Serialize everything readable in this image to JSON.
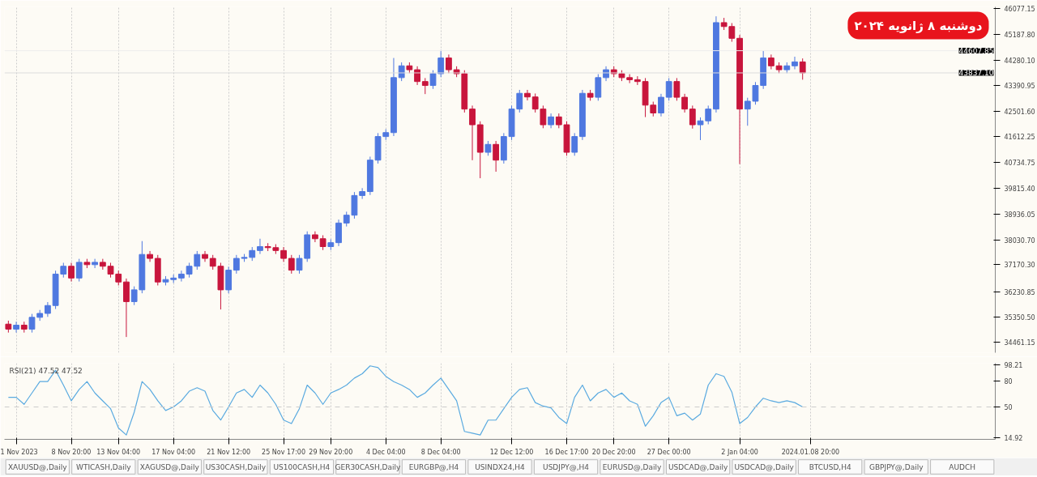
{
  "chart_data": [
    {
      "type": "candlestick",
      "title": "دوشنبه ۸ ژانویه ۲۰۲۴",
      "ylim": [
        34107,
        46132
      ],
      "yticks": [
        46077.15,
        {
          "value": 45187.8,
          "label": "45187.80"
        },
        {
          "value": 44280.1,
          "label": "44280.10"
        },
        43390.95,
        {
          "value": 42501.6,
          "label": "42501.60"
        },
        41612.25,
        40734.75,
        {
          "value": 39815.4,
          "label": "39815.40"
        },
        38936.05,
        {
          "value": 38030.7,
          "label": "38030.70"
        },
        {
          "value": 37170.3,
          "label": "37170.30"
        },
        36230.85,
        {
          "value": 35350.5,
          "label": "35350.50"
        },
        34461.15
      ],
      "categories": [
        null,
        null,
        null,
        null,
        null,
        null,
        null,
        null,
        null,
        null,
        null,
        null,
        null,
        null,
        null,
        null,
        null,
        null,
        null,
        null,
        null,
        null,
        null,
        null,
        null,
        null,
        null,
        null,
        null,
        null,
        null,
        null,
        null,
        null,
        null,
        null,
        null,
        null,
        null,
        null,
        null,
        null,
        null,
        null,
        null,
        null,
        null,
        null,
        null,
        null,
        null,
        null,
        null,
        null,
        null,
        null,
        null,
        null,
        null,
        null,
        null,
        null,
        null,
        null,
        null,
        null,
        null,
        null,
        null,
        null,
        null,
        null,
        null,
        null,
        null,
        null,
        null,
        null,
        null,
        null,
        null,
        null,
        null,
        null,
        null,
        null,
        null,
        null,
        null,
        null,
        null,
        null,
        null,
        null,
        null,
        null,
        null,
        null,
        null,
        null,
        null,
        null,
        null,
        null,
        null,
        null,
        null,
        null,
        null,
        null,
        null,
        null,
        null,
        null,
        null,
        null,
        null,
        null,
        null,
        null,
        null,
        null,
        null,
        null,
        null,
        null
      ],
      "tick_labels": "y",
      "grid": "x",
      "ref_lines": [
        {
          "axis": "y",
          "value": 43837.1,
          "label": "43837.10",
          "color": "#dddddd"
        },
        {
          "axis": "y",
          "value": 44607.85,
          "label": "44607.85",
          "color": "#eeeeee"
        }
      ],
      "ohlc": [
        [
          35100,
          35220,
          34807,
          34927
        ],
        [
          34927,
          35184,
          34807,
          35064
        ],
        [
          35064,
          35184,
          34807,
          34927
        ],
        [
          34927,
          35456,
          34807,
          35336
        ],
        [
          35336,
          35593,
          35216,
          35473
        ],
        [
          35473,
          35867,
          35353,
          35747
        ],
        [
          35747,
          36960,
          35627,
          36840
        ],
        [
          36840,
          37233,
          36720,
          37113
        ],
        [
          37113,
          37233,
          36583,
          36703
        ],
        [
          36703,
          37370,
          36583,
          37250
        ],
        [
          37250,
          37370,
          37048,
          37168
        ],
        [
          37168,
          37370,
          37048,
          37250
        ],
        [
          37250,
          37370,
          36993,
          37113
        ],
        [
          37113,
          37233,
          36720,
          36840
        ],
        [
          36840,
          36960,
          36446,
          36566
        ],
        [
          36566,
          36686,
          34653,
          35883
        ],
        [
          35883,
          36413,
          35763,
          36293
        ],
        [
          36293,
          37988,
          36173,
          37523
        ],
        [
          37523,
          37643,
          37266,
          37386
        ],
        [
          37386,
          37506,
          36446,
          36566
        ],
        [
          36566,
          36770,
          36446,
          36650
        ],
        [
          36650,
          36823,
          36530,
          36703
        ],
        [
          36703,
          36960,
          36583,
          36840
        ],
        [
          36840,
          37233,
          36720,
          37113
        ],
        [
          37113,
          37643,
          36993,
          37523
        ],
        [
          37523,
          37643,
          37266,
          37386
        ],
        [
          37386,
          37506,
          36993,
          37113
        ],
        [
          37113,
          37233,
          35610,
          36293
        ],
        [
          36293,
          37096,
          36173,
          36976
        ],
        [
          36976,
          37506,
          36856,
          37386
        ],
        [
          37386,
          37540,
          37266,
          37420
        ],
        [
          37420,
          37780,
          37300,
          37660
        ],
        [
          37660,
          38070,
          37540,
          37796
        ],
        [
          37796,
          37916,
          37640,
          37760
        ],
        [
          37760,
          37880,
          37540,
          37660
        ],
        [
          37660,
          37780,
          37266,
          37386
        ],
        [
          37386,
          37506,
          36856,
          36976
        ],
        [
          36976,
          37506,
          36856,
          37386
        ],
        [
          37386,
          38326,
          37266,
          38206
        ],
        [
          38206,
          38326,
          37950,
          38070
        ],
        [
          38070,
          38190,
          37676,
          37796
        ],
        [
          37796,
          38053,
          37676,
          37933
        ],
        [
          37933,
          38736,
          37813,
          38616
        ],
        [
          38616,
          39009,
          38496,
          38889
        ],
        [
          38889,
          39693,
          38769,
          39573
        ],
        [
          39573,
          39830,
          39453,
          39710
        ],
        [
          39710,
          40923,
          39590,
          40803
        ],
        [
          40803,
          41743,
          40683,
          41623
        ],
        [
          41623,
          41880,
          41503,
          41760
        ],
        [
          41760,
          44355,
          41640,
          43672
        ],
        [
          43672,
          44202,
          43552,
          44082
        ],
        [
          44082,
          44202,
          43826,
          43946
        ],
        [
          43946,
          44066,
          43416,
          43536
        ],
        [
          43536,
          43656,
          43100,
          43399
        ],
        [
          43399,
          43929,
          43279,
          43809
        ],
        [
          43809,
          44630,
          43689,
          44355
        ],
        [
          44355,
          44475,
          43826,
          43946
        ],
        [
          43946,
          44066,
          43689,
          43809
        ],
        [
          43809,
          43929,
          42459,
          42579
        ],
        [
          42579,
          42699,
          40800,
          42033
        ],
        [
          42033,
          42153,
          40174,
          41076
        ],
        [
          41076,
          41470,
          40956,
          41350
        ],
        [
          41350,
          41470,
          40400,
          40803
        ],
        [
          40803,
          41743,
          40683,
          41623
        ],
        [
          41623,
          42699,
          41503,
          42579
        ],
        [
          42579,
          43246,
          42459,
          43126
        ],
        [
          43126,
          43246,
          42880,
          43000
        ],
        [
          43000,
          43120,
          42459,
          42579
        ],
        [
          42579,
          42699,
          41913,
          42033
        ],
        [
          42033,
          42426,
          41913,
          42306
        ],
        [
          42306,
          42426,
          41913,
          42033
        ],
        [
          42033,
          42153,
          40956,
          41076
        ],
        [
          41076,
          41743,
          40956,
          41623
        ],
        [
          41623,
          43246,
          41503,
          43126
        ],
        [
          43126,
          43246,
          42869,
          42989
        ],
        [
          42989,
          43792,
          42869,
          43672
        ],
        [
          43672,
          44066,
          43552,
          43946
        ],
        [
          43946,
          44066,
          43689,
          43809
        ],
        [
          43809,
          43929,
          43552,
          43672
        ],
        [
          43672,
          43792,
          43480,
          43600
        ],
        [
          43600,
          43720,
          43416,
          43536
        ],
        [
          43536,
          43656,
          42300,
          42716
        ],
        [
          42716,
          42836,
          42323,
          42443
        ],
        [
          42443,
          43109,
          42323,
          42989
        ],
        [
          42989,
          43656,
          42869,
          43536
        ],
        [
          43536,
          43656,
          42869,
          42989
        ],
        [
          42989,
          43109,
          42459,
          42579
        ],
        [
          42579,
          42699,
          41900,
          42033
        ],
        [
          42033,
          42289,
          41500,
          42169
        ],
        [
          42169,
          42699,
          42049,
          42579
        ],
        [
          42579,
          45804,
          42459,
          45585
        ],
        [
          45585,
          45750,
          45329,
          45449
        ],
        [
          45449,
          45569,
          44919,
          45039
        ],
        [
          45039,
          45159,
          40666,
          42579
        ],
        [
          42579,
          42972,
          42000,
          42852
        ],
        [
          42852,
          43519,
          42732,
          43399
        ],
        [
          43399,
          44600,
          43279,
          44355
        ],
        [
          44355,
          44475,
          43962,
          44082
        ],
        [
          44082,
          44202,
          43826,
          43946
        ],
        [
          43946,
          44202,
          43826,
          44082
        ],
        [
          44082,
          44400,
          43962,
          44219
        ],
        [
          44219,
          44339,
          43600,
          43837
        ],
        null,
        null,
        null,
        null,
        null,
        null,
        null,
        null,
        null,
        null,
        null,
        null,
        null,
        null,
        null,
        null,
        null,
        null,
        null,
        null,
        null,
        null,
        null,
        null
      ],
      "colors": [
        "#c8153c",
        "#4f78e0",
        "#c8153c",
        "#4f78e0",
        "#4f78e0",
        "#4f78e0",
        "#4f78e0",
        "#4f78e0",
        "#c8153c",
        "#4f78e0",
        "#c8153c",
        "#4f78e0",
        "#c8153c",
        "#c8153c",
        "#c8153c",
        "#c8153c",
        "#4f78e0",
        "#4f78e0",
        "#c8153c",
        "#c8153c",
        "#4f78e0",
        "#4f78e0",
        "#4f78e0",
        "#4f78e0",
        "#4f78e0",
        "#c8153c",
        "#c8153c",
        "#c8153c",
        "#4f78e0",
        "#4f78e0",
        "#4f78e0",
        "#4f78e0",
        "#4f78e0",
        "#c8153c",
        "#c8153c",
        "#c8153c",
        "#c8153c",
        "#4f78e0",
        "#4f78e0",
        "#c8153c",
        "#c8153c",
        "#4f78e0",
        "#4f78e0",
        "#4f78e0",
        "#4f78e0",
        "#4f78e0",
        "#4f78e0",
        "#4f78e0",
        "#4f78e0",
        "#4f78e0",
        "#4f78e0",
        "#c8153c",
        "#c8153c",
        "#c8153c",
        "#4f78e0",
        "#4f78e0",
        "#c8153c",
        "#c8153c",
        "#c8153c",
        "#c8153c",
        "#c8153c",
        "#4f78e0",
        "#c8153c",
        "#4f78e0",
        "#4f78e0",
        "#4f78e0",
        "#c8153c",
        "#c8153c",
        "#c8153c",
        "#4f78e0",
        "#c8153c",
        "#c8153c",
        "#4f78e0",
        "#4f78e0",
        "#c8153c",
        "#4f78e0",
        "#4f78e0",
        "#c8153c",
        "#c8153c",
        "#c8153c",
        "#c8153c",
        "#c8153c",
        "#c8153c",
        "#4f78e0",
        "#4f78e0",
        "#c8153c",
        "#c8153c",
        "#c8153c",
        "#4f78e0",
        "#4f78e0",
        "#4f78e0",
        "#c8153c",
        "#c8153c",
        "#c8153c",
        "#4f78e0",
        "#4f78e0",
        "#4f78e0",
        "#c8153c",
        "#c8153c",
        "#4f78e0",
        "#4f78e0",
        "#c8153c",
        null,
        null,
        null,
        null,
        null,
        null,
        null,
        null,
        null,
        null,
        null,
        null,
        null,
        null,
        null,
        null,
        null,
        null,
        null,
        null,
        null,
        null,
        null,
        null
      ]
    },
    {
      "type": "line",
      "annotations": [
        "RSI(21) 47.52 47.52"
      ],
      "ylim": [
        13,
        100
      ],
      "yticks": [
        98.21,
        80,
        50,
        14.92
      ],
      "categories": [
        null,
        "1 Nov 2023",
        null,
        null,
        null,
        null,
        null,
        null,
        "8 Nov 20:00",
        null,
        null,
        null,
        null,
        null,
        "13 Nov 04:00",
        null,
        null,
        null,
        null,
        null,
        null,
        "17 Nov 04:00",
        null,
        null,
        null,
        null,
        null,
        null,
        "21 Nov 12:00",
        null,
        null,
        null,
        null,
        null,
        null,
        "25 Nov 17:00",
        null,
        null,
        null,
        null,
        null,
        "29 Nov 20:00",
        null,
        null,
        null,
        null,
        null,
        null,
        "4 Dec 04:00",
        null,
        null,
        null,
        null,
        null,
        null,
        "8 Dec 04:00",
        null,
        null,
        null,
        null,
        null,
        null,
        null,
        null,
        "12 Dec 12:00",
        null,
        null,
        null,
        null,
        null,
        null,
        "16 Dec 17:00",
        null,
        null,
        null,
        null,
        null,
        "20 Dec 20:00",
        null,
        null,
        null,
        null,
        null,
        null,
        "27 Dec 00:00",
        null,
        null,
        null,
        null,
        null,
        null,
        null,
        null,
        "2 Jan 04:00",
        null,
        null,
        null,
        null,
        null,
        null,
        null,
        null,
        "2024.01.08 20:00",
        null,
        null,
        null,
        null,
        null,
        null,
        null,
        null,
        null,
        null,
        null,
        null,
        null,
        null,
        null,
        null,
        null,
        null,
        null,
        null,
        null,
        null,
        null
      ],
      "grid": "x",
      "ref_lines": [
        {
          "axis": "y",
          "value": 50,
          "color": "#cccccc",
          "line_style": "dashed"
        }
      ],
      "series": [
        {
          "color": "#5aaae0",
          "values": [
            61,
            61,
            53,
            66,
            79,
            79,
            92,
            75,
            57,
            70,
            79,
            66,
            57,
            48,
            26,
            18,
            44,
            79,
            70,
            57,
            46,
            50,
            57,
            68,
            72,
            68,
            46,
            35,
            50,
            66,
            70,
            61,
            75,
            66,
            53,
            35,
            31,
            48,
            75,
            66,
            53,
            66,
            70,
            75,
            83,
            88,
            97,
            95,
            85,
            79,
            75,
            70,
            61,
            66,
            75,
            83,
            70,
            57,
            22,
            20,
            18,
            35,
            35,
            48,
            61,
            70,
            72,
            55,
            51,
            49,
            38,
            31,
            61,
            75,
            57,
            66,
            70,
            61,
            66,
            57,
            53,
            28,
            40,
            55,
            61,
            40,
            43,
            35,
            42,
            75,
            88,
            85,
            67,
            31,
            38,
            50,
            60,
            57,
            55,
            57,
            55,
            50,
            null,
            null,
            null,
            null,
            null,
            null,
            null,
            null,
            null,
            null,
            null,
            null,
            null,
            null,
            null,
            null,
            null,
            null,
            null,
            null,
            null,
            null,
            null,
            null
          ]
        }
      ]
    },
    {
      "type": "other",
      "annotations": [
        "XAUUSD@,Daily",
        "WTICASH,Daily",
        "XAGUSD@,Daily",
        "US30CASH,Daily",
        "US100CASH,H4",
        "GER30CASH,Daily",
        "EURGBP@,H4",
        "USINDX24,H4",
        "USDJPY@,H4",
        "EURUSD@,Daily",
        "USDCAD@,Daily",
        "USDCAD@,Daily",
        "BTCUSD,H4",
        "GBPJPY@,Daily",
        "AUDCH"
      ]
    }
  ]
}
